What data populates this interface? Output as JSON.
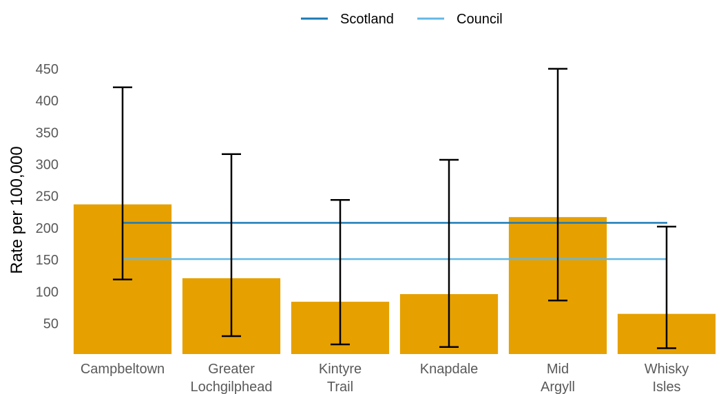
{
  "chart_data": {
    "type": "bar",
    "categories": [
      [
        "Campbeltown"
      ],
      [
        "Greater",
        "Lochgilphead"
      ],
      [
        "Kintyre",
        "Trail"
      ],
      [
        "Knapdale"
      ],
      [
        "Mid",
        "Argyll"
      ],
      [
        "Whisky",
        "Isles"
      ]
    ],
    "values": [
      237,
      121,
      84,
      96,
      217,
      65
    ],
    "error_bars": {
      "lower": [
        119,
        30,
        17,
        13,
        86,
        11
      ],
      "upper": [
        421,
        316,
        244,
        307,
        450,
        202
      ]
    },
    "reference_lines": [
      {
        "name": "Scotland",
        "value": 208,
        "color": "#1a7ab5"
      },
      {
        "name": "Council",
        "value": 151,
        "color": "#61b8e6"
      }
    ],
    "ylabel": "Rate per 100,000",
    "yticks": [
      50,
      100,
      150,
      200,
      250,
      300,
      350,
      400,
      450
    ],
    "ylim": [
      0,
      460
    ],
    "bar_color": "#e6a000",
    "errorbar_color": "#000000",
    "grid": false,
    "legend_position": "top"
  }
}
